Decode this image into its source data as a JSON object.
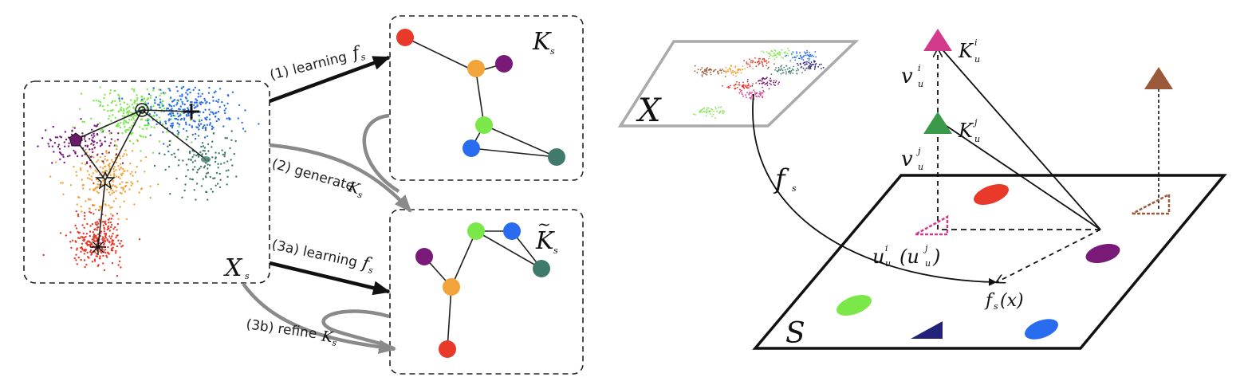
{
  "left_panel": {
    "source_label": "X",
    "source_sub": "s",
    "step1": "(1) learning",
    "step1_fn": "f",
    "step1_fn_sub": "s",
    "step2": "(2) generate",
    "step2_sym": "K",
    "step2_sym_sub": "s",
    "step3a": "(3a) learning",
    "step3a_fn": "f",
    "step3a_fn_sub": "s",
    "step3b": "(3b) refine",
    "step3b_sym": "K",
    "step3b_sym_sub": "s",
    "top_graph_label": "K",
    "top_graph_sub": "s",
    "bottom_graph_label": "K",
    "bottom_graph_sub": "s"
  },
  "right_panel": {
    "input_space_label": "X",
    "map_label": "f",
    "map_sub": "s",
    "target_space_label": "S",
    "embedding_label": "f",
    "embedding_sub": "s",
    "embedding_arg": "(x)",
    "u_label": "u",
    "u_sub": "u",
    "u_sup": "i",
    "u_paren_label": "(u",
    "u_paren_sub": "u",
    "u_paren_sup": "j",
    "u_paren_close": ")",
    "v_i_label": "v",
    "v_i_sub": "u",
    "v_i_sup": "i",
    "v_j_label": "v",
    "v_j_sub": "u",
    "v_j_sup": "j",
    "k_i_label": "K",
    "k_i_sub": "u",
    "k_i_sup": "i",
    "k_j_label": "K",
    "k_j_sub": "u",
    "k_j_sup": "j"
  },
  "colors": {
    "red": "#e8392a",
    "orange": "#f2a33a",
    "purple": "#7a1a78",
    "green": "#7be84a",
    "blue": "#2a6cf0",
    "teal": "#3f7a6c",
    "magenta": "#d43a8c",
    "brown": "#9a5a3a",
    "navy": "#22227a",
    "gray_arrow": "#8a8a8a"
  }
}
